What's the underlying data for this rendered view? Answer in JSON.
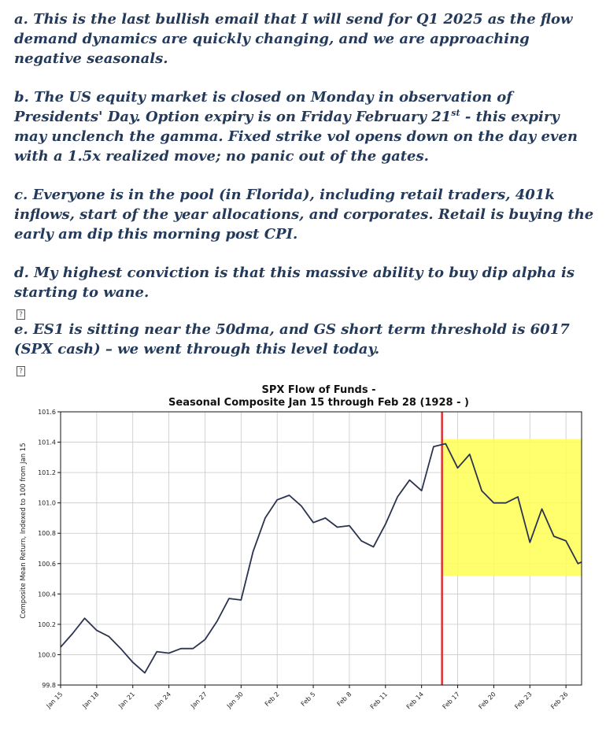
{
  "paragraphs": {
    "a": "a. This is the last bullish email that I will send for Q1 2025 as the flow demand dynamics are quickly changing, and we are approaching negative seasonals.",
    "b_pre": "b. The US equity market is closed on Monday in observation of Presidents' Day. Option expiry is on Friday February 21",
    "b_sup": "st",
    "b_post": " - this expiry may unclench the gamma. Fixed strike vol opens down on the day even with a 1.5x realized move; no panic out of the gates.",
    "c": "c. Everyone is in the pool (in Florida), including retail traders, 401k inflows, start of the year allocations, and corporates. Retail is buying the early am dip this morning post CPI.",
    "d": "d. My highest conviction is that this massive ability to buy dip alpha is starting to wane.",
    "e": "e. ES1 is sitting near the 50dma, and GS short term threshold is 6017 (SPX cash) – we went through this level today."
  },
  "placeholder_glyph": "?",
  "chart_data": {
    "type": "line",
    "title_line1": "SPX Flow of Funds -",
    "title_line2": "Seasonal Composite Jan 15 through Feb 28 (1928 - )",
    "ylabel": "Composite Mean Return, Indexed to 100 from Jan 15",
    "xlabel": "",
    "ylim": [
      99.8,
      101.6
    ],
    "yticks": [
      99.8,
      100.0,
      100.2,
      100.4,
      100.6,
      100.8,
      101.0,
      101.2,
      101.4,
      101.6
    ],
    "ytick_labels": [
      "99.8",
      "100.0",
      "100.2",
      "100.4",
      "100.6",
      "100.8",
      "101.0",
      "101.2",
      "101.4",
      "101.6"
    ],
    "xticks": [
      0,
      3,
      6,
      9,
      12,
      15,
      18,
      21,
      24,
      27,
      30,
      33,
      36,
      39,
      42
    ],
    "xtick_labels": [
      "Jan 15",
      "Jan 18",
      "Jan 21",
      "Jan 24",
      "Jan 27",
      "Jan 30",
      "Feb 2",
      "Feb 5",
      "Feb 8",
      "Feb 11",
      "Feb 14",
      "Feb 17",
      "Feb 20",
      "Feb 23",
      "Feb 26"
    ],
    "xlim": [
      0,
      43.3
    ],
    "x": [
      0,
      1,
      2,
      3,
      4,
      5,
      6,
      7,
      8,
      9,
      10,
      11,
      12,
      13,
      14,
      15,
      16,
      17,
      18,
      19,
      20,
      21,
      22,
      23,
      24,
      25,
      26,
      27,
      28,
      29,
      30,
      31,
      32,
      33,
      34,
      35,
      36,
      37,
      38,
      39,
      40,
      41,
      42,
      43,
      44
    ],
    "values": [
      100.05,
      100.14,
      100.24,
      100.16,
      100.12,
      100.04,
      99.95,
      99.88,
      100.02,
      100.01,
      100.04,
      100.04,
      100.1,
      100.22,
      100.37,
      100.36,
      100.68,
      100.9,
      101.02,
      101.05,
      100.98,
      100.87,
      100.9,
      100.84,
      100.85,
      100.75,
      100.71,
      100.86,
      101.04,
      101.15,
      101.08,
      101.37,
      101.39,
      101.23,
      101.32,
      101.08,
      101.0,
      101.0,
      101.04,
      100.74,
      100.96,
      100.78,
      100.75,
      100.6,
      100.61
    ],
    "vline_x": 31.7,
    "vline_color": "#e03030",
    "highlight": {
      "x0": 31.7,
      "x1": 43.3,
      "y0": 100.52,
      "y1": 101.42,
      "color": "#ffff55"
    },
    "line_color": "#2a3450",
    "grid": true
  }
}
